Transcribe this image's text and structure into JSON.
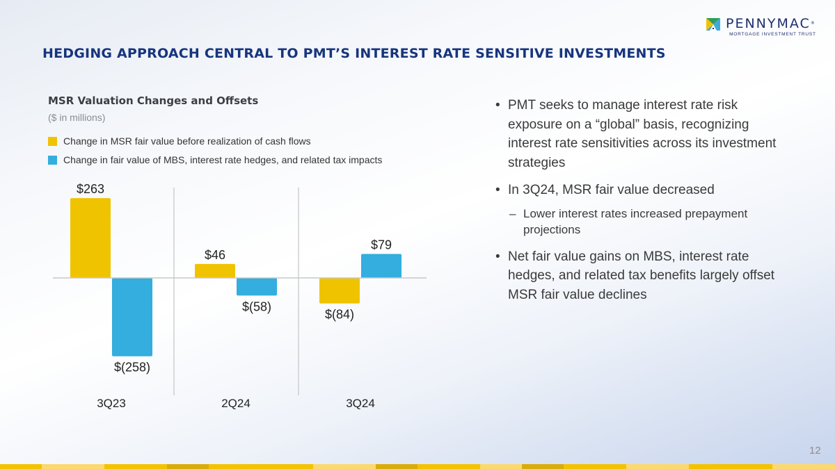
{
  "logo": {
    "name": "PENNYMAC",
    "registered": "®",
    "subtitle": "MORTGAGE INVESTMENT TRUST"
  },
  "title": "HEDGING APPROACH CENTRAL TO PMT’S INTEREST RATE SENSITIVE INVESTMENTS",
  "colors": {
    "title": "#17357e",
    "msr": "#f0c300",
    "hedge": "#33aede"
  },
  "chart_data": {
    "type": "bar",
    "title": "MSR Valuation Changes and Offsets",
    "subtitle": "($ in millions)",
    "xlabel": "",
    "ylabel": "",
    "categories": [
      "3Q23",
      "2Q24",
      "3Q24"
    ],
    "series": [
      {
        "name": "Change in MSR fair value before realization of cash flows",
        "color": "#f0c300",
        "values": [
          263,
          46,
          -84
        ],
        "labels": [
          "$263",
          "$46",
          "$(84)"
        ]
      },
      {
        "name": "Change in fair value of MBS, interest rate hedges, and related tax impacts",
        "color": "#33aede",
        "values": [
          -258,
          -58,
          79
        ],
        "labels": [
          "$(258)",
          "$(58)",
          "$79"
        ]
      }
    ],
    "ylim": [
      -270,
      280
    ],
    "grid": false,
    "legend": "top-left"
  },
  "bullets": [
    {
      "text": "PMT seeks to manage interest rate risk exposure on a “global” basis, recognizing interest rate sensitivities across its investment strategies"
    },
    {
      "text": "In 3Q24, MSR fair value decreased",
      "sub": [
        "Lower interest rates increased prepayment projections"
      ]
    },
    {
      "text": "Net fair value gains on MBS, interest rate hedges, and related tax benefits largely offset MSR fair value declines"
    }
  ],
  "bullet_glyph": "•",
  "dash_glyph": "–",
  "page_number": "12"
}
